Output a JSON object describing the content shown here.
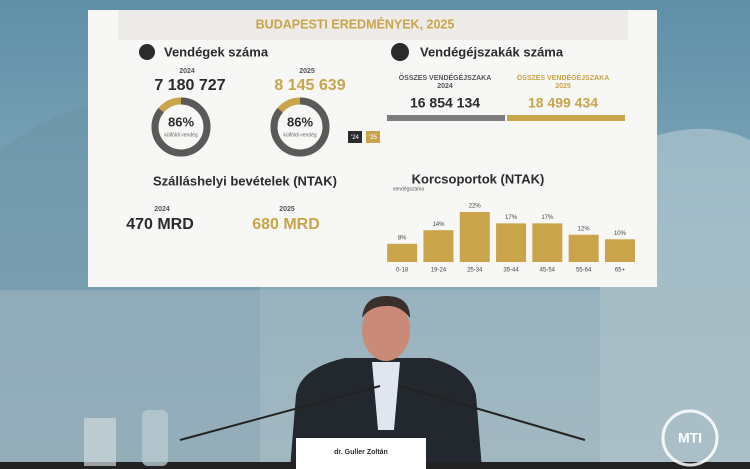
{
  "slide": {
    "title": "BUDAPESTI EREDMÉNYEK, 2025",
    "guests": {
      "title": "Vendégek száma",
      "year_a": "2024",
      "value_a": "7 180 727",
      "year_b": "2025",
      "value_b": "8 145 639",
      "legend_a": "'24",
      "legend_b": "'25"
    },
    "donuts": [
      {
        "value": 86,
        "label": "86%",
        "caption": "külföldi vendég"
      },
      {
        "value": 86,
        "label": "86%",
        "caption": "külföldi vendég"
      }
    ],
    "nights": {
      "title": "Vendégéjszakák száma",
      "label_a": "ÖSSZES VENDÉGÉJSZAKA",
      "year_a": "2024",
      "value_a": "16 854 134",
      "label_b": "ÖSSZES VENDÉGÉJSZAKA",
      "year_b": "2025",
      "value_b": "18 499 434"
    },
    "revenue": {
      "title": "Szálláshelyi bevételek (NTAK)",
      "year_a": "2024",
      "value_a": "470 MRD",
      "year_b": "2025",
      "value_b": "680 MRD"
    },
    "age_chart": {
      "type": "bar",
      "title": "Korcsoportok (NTAK)",
      "subtitle": "vendégszáma",
      "categories": [
        "0-18",
        "19-24",
        "25-34",
        "35-44",
        "45-54",
        "55-64",
        "65+"
      ],
      "values": [
        8,
        14,
        22,
        17,
        17,
        12,
        10
      ],
      "value_labels": [
        "8%",
        "14%",
        "22%",
        "17%",
        "17%",
        "12%",
        "10%"
      ],
      "color": "#c9a44a"
    }
  },
  "nameplate": "dr. Guller Zoltán",
  "logo": "MTI"
}
